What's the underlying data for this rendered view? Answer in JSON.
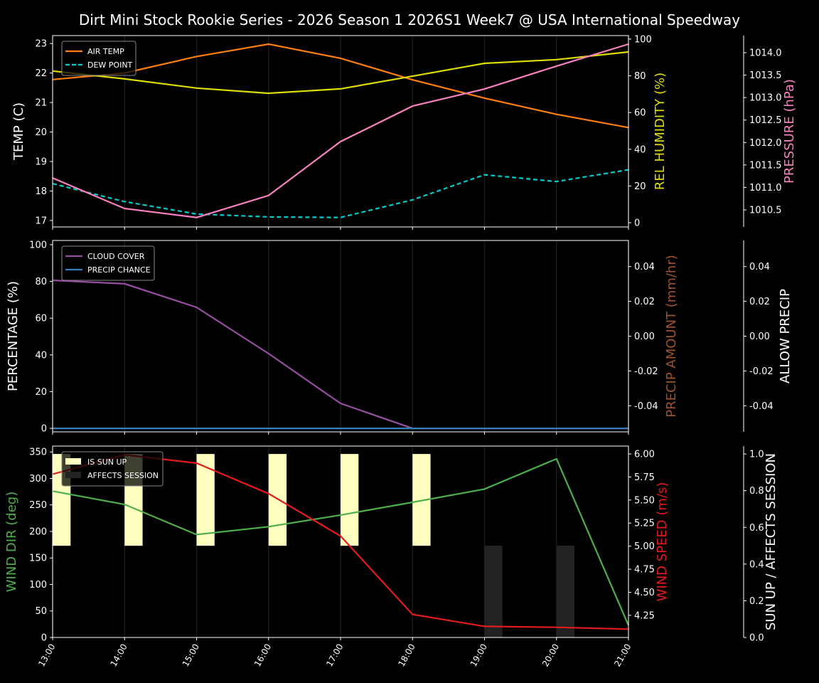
{
  "chart_data": [
    {
      "type": "line",
      "title": "Dirt Mini Stock Rookie Series - 2026 Season 1 2026S1 Week7 @ USA International Speedway",
      "x": [
        "13:00",
        "14:00",
        "15:00",
        "16:00",
        "17:00",
        "18:00",
        "19:00",
        "20:00",
        "21:00"
      ],
      "axes": {
        "left": {
          "label": "TEMP (C)",
          "color": "#ffffff",
          "ylim": [
            16.78,
            23.27
          ],
          "ticks": [
            17,
            18,
            19,
            20,
            21,
            22,
            23
          ]
        },
        "right": {
          "label": "REL HUMIDITY (%)",
          "color": "#dddd00",
          "ylim": [
            -2.3,
            101.9
          ],
          "ticks": [
            0,
            20,
            40,
            60,
            80,
            100
          ]
        },
        "third": {
          "label": "PRESSURE (hPa)",
          "color": "#f781bf",
          "ylim": [
            1010.12,
            1014.38
          ],
          "ticks": [
            1010.5,
            1011.0,
            1011.5,
            1012.0,
            1012.5,
            1013.0,
            1013.5,
            1014.0
          ],
          "tick_decimals": 1
        }
      },
      "series": [
        {
          "name": "AIR TEMP",
          "axis": "left",
          "color": "#ff7f0e",
          "dash": false,
          "legend": true,
          "values": [
            21.78,
            22.0,
            22.56,
            22.98,
            22.5,
            21.77,
            21.15,
            20.6,
            20.15
          ]
        },
        {
          "name": "DEW POINT",
          "axis": "left",
          "color": "#00cccc",
          "dash": true,
          "legend": true,
          "values": [
            18.25,
            17.64,
            17.22,
            17.12,
            17.1,
            17.7,
            18.55,
            18.32,
            18.72
          ]
        },
        {
          "axis": "right",
          "color": "#dddd00",
          "dash": false,
          "legend": false,
          "values": [
            82.6,
            78.3,
            73.3,
            70.5,
            72.9,
            79.8,
            86.8,
            88.8,
            93.0
          ]
        },
        {
          "axis": "third",
          "color": "#f781bf",
          "dash": false,
          "legend": false,
          "values": [
            1011.21,
            1010.53,
            1010.33,
            1010.82,
            1012.02,
            1012.81,
            1013.19,
            1013.7,
            1014.19
          ]
        }
      ],
      "grid": "vertical",
      "legend_position": "top-left"
    },
    {
      "type": "line",
      "x": [
        "13:00",
        "14:00",
        "15:00",
        "16:00",
        "17:00",
        "18:00",
        "19:00",
        "20:00",
        "21:00"
      ],
      "axes": {
        "left": {
          "label": "PERCENTAGE (%)",
          "color": "#ffffff",
          "ylim": [
            -1.9,
            102.3
          ],
          "ticks": [
            0,
            20,
            40,
            60,
            80,
            100
          ]
        },
        "right": {
          "label": "PRECIP AMOUNT (mm/hr)",
          "color": "#a0522d",
          "ylim": [
            -0.055,
            0.055
          ],
          "ticks": [
            -0.04,
            -0.02,
            0.0,
            0.02,
            0.04
          ],
          "tick_decimals": 2
        },
        "third": {
          "label": "ALLOW PRECIP",
          "color": "#ffffff",
          "ylim": [
            -0.055,
            0.055
          ],
          "ticks": [
            -0.04,
            -0.02,
            0.0,
            0.02,
            0.04
          ],
          "tick_decimals": 2
        }
      },
      "series": [
        {
          "name": "CLOUD COVER",
          "axis": "left",
          "color": "#984ea3",
          "dash": false,
          "legend": true,
          "values": [
            80.6,
            78.7,
            65.9,
            40.7,
            13.6,
            0,
            0,
            0,
            0
          ]
        },
        {
          "name": "PRECIP CHANCE",
          "axis": "left",
          "color": "#377eb8",
          "dash": false,
          "legend": true,
          "values": [
            0,
            0,
            0,
            0,
            0,
            0,
            0,
            0,
            0
          ]
        }
      ],
      "grid": "vertical",
      "legend_position": "top-left"
    },
    {
      "type": "line",
      "x": [
        "13:00",
        "14:00",
        "15:00",
        "16:00",
        "17:00",
        "18:00",
        "19:00",
        "20:00",
        "21:00"
      ],
      "axes": {
        "left": {
          "label": "WIND DIR (deg)",
          "color": "#4daf4a",
          "ylim": [
            0,
            361
          ],
          "ticks": [
            0,
            50,
            100,
            150,
            200,
            250,
            300,
            350
          ]
        },
        "right": {
          "label": "WIND SPEED (m/s)",
          "color": "#e41a1c",
          "ylim": [
            4.01,
            6.085
          ],
          "ticks": [
            4.25,
            4.5,
            4.75,
            5.0,
            5.25,
            5.5,
            5.75,
            6.0
          ],
          "tick_decimals": 2
        },
        "third": {
          "label": "SUN UP / AFFECTS SESSION",
          "color": "#ffffff",
          "ylim": [
            0,
            1.043
          ],
          "ticks": [
            0,
            0.2,
            0.4,
            0.6,
            0.8,
            1.0
          ],
          "tick_decimals": 1
        }
      },
      "bars": [
        {
          "name": "IS SUN UP",
          "color": "#ffffc0",
          "bottom": 0.5,
          "values": [
            0.5,
            0.5,
            0.5,
            0.5,
            0.5,
            0.5,
            0,
            0,
            0
          ]
        },
        {
          "name": "AFFECTS SESSION",
          "color": "#222222",
          "bottom": 0,
          "values": [
            0,
            0,
            0,
            0,
            0,
            0,
            0.5,
            0.5,
            0
          ]
        }
      ],
      "series": [
        {
          "axis": "left",
          "color": "#4daf4a",
          "dash": false,
          "legend": false,
          "values": [
            276,
            251,
            194,
            209,
            231,
            255,
            280,
            337,
            23
          ]
        },
        {
          "axis": "right",
          "color": "#e41a1c",
          "dash": false,
          "legend": false,
          "values": [
            5.78,
            5.99,
            5.9,
            5.57,
            5.11,
            4.26,
            4.13,
            4.12,
            4.1
          ]
        }
      ],
      "grid": "vertical",
      "legend_position": "top-left"
    }
  ]
}
